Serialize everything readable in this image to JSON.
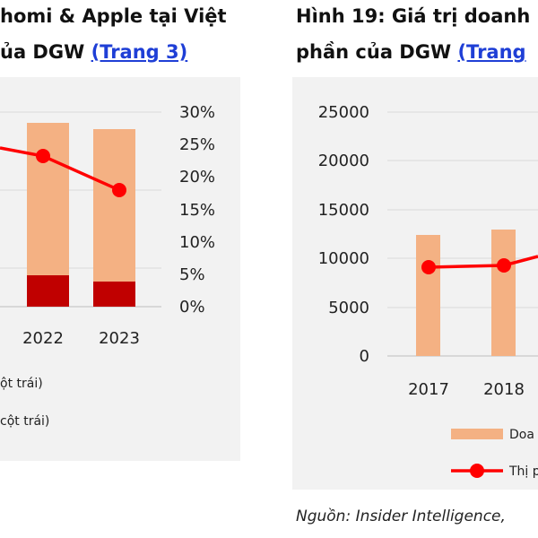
{
  "left_panel": {
    "title_line1": "homi & Apple tại Việt",
    "title_line2_prefix": "ủa DGW ",
    "title_link": "(Trang 3)",
    "legend": [
      "ột trái)",
      "cột trái)"
    ]
  },
  "right_panel": {
    "title_line1": "Hình 19: Giá trị doanh",
    "title_line2_prefix": "phần của DGW ",
    "title_link": "(Trang",
    "legend": [
      "Doa",
      "Thị p"
    ]
  },
  "source": "Nguồn: Insider Intelligence,",
  "colors": {
    "bar_light": "#f4b183",
    "bar_dark": "#c00000",
    "line": "#ff0000",
    "link": "#1f3fd6",
    "panel_bg": "#f2f2f2"
  },
  "chart_data": [
    {
      "type": "bar",
      "note": "left chart, cropped at left edge",
      "categories": [
        "2022",
        "2023"
      ],
      "series": [
        {
          "values": [
            25,
            25
          ]
        },
        {
          "values": [
            4.5,
            3.5
          ]
        },
        {
          "values": [
            23.3,
            17.9
          ]
        }
      ],
      "line_visible_start": 24.5,
      "y2_ticks": [
        "30%",
        "25%",
        "20%",
        "15%",
        "10%",
        "5%",
        "0%"
      ],
      "y2lim": [
        0,
        30
      ]
    },
    {
      "type": "bar",
      "note": "right chart, cropped at right edge",
      "categories": [
        "2017",
        "2018"
      ],
      "series": [
        {
          "values": [
            12400,
            12950
          ]
        },
        {
          "values": [
            9100,
            9200
          ]
        }
      ],
      "line_visible_end": 10200,
      "y_ticks": [
        "25000",
        "20000",
        "15000",
        "10000",
        "5000",
        "0"
      ],
      "ylim": [
        0,
        25000
      ]
    }
  ]
}
